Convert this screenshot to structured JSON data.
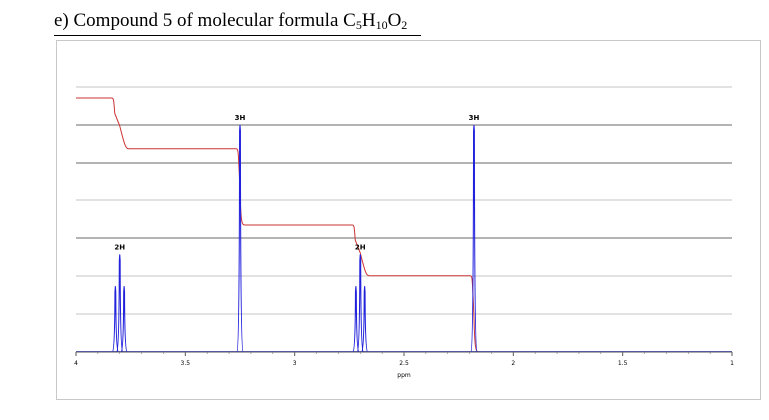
{
  "header": {
    "title_prefix": "e) Compound 5 of molecular formula C",
    "c_count": "5",
    "h_letter": "H",
    "h_count": "10",
    "o_letter": "O",
    "o_count": "2"
  },
  "chart_data": {
    "type": "line",
    "xlabel": "ppm",
    "xlim": [
      4,
      1
    ],
    "x_ticks": [
      4,
      3.5,
      3,
      2.5,
      2,
      1.5,
      1
    ],
    "x_tick_labels": [
      "4",
      "3.5",
      "3",
      "2.5",
      "2",
      "1.5",
      "1"
    ],
    "spectrum_color": "#2222dd",
    "integral_color": "#cc3333",
    "peaks": [
      {
        "ppm": 3.82,
        "height": 0.29
      },
      {
        "ppm": 3.8,
        "height": 0.43
      },
      {
        "ppm": 3.78,
        "height": 0.29
      },
      {
        "ppm": 3.25,
        "height": 1.0
      },
      {
        "ppm": 2.72,
        "height": 0.29
      },
      {
        "ppm": 2.7,
        "height": 0.43
      },
      {
        "ppm": 2.68,
        "height": 0.29
      },
      {
        "ppm": 2.18,
        "height": 1.0
      }
    ],
    "peak_labels": [
      {
        "ppm": 3.8,
        "text": "2H"
      },
      {
        "ppm": 3.25,
        "text": "3H"
      },
      {
        "ppm": 2.7,
        "text": "2H"
      },
      {
        "ppm": 2.18,
        "text": "3H"
      }
    ],
    "integral_steps": [
      {
        "ppm": 3.8,
        "drop": 2
      },
      {
        "ppm": 3.25,
        "drop": 3
      },
      {
        "ppm": 2.7,
        "drop": 2
      },
      {
        "ppm": 2.18,
        "drop": 3
      }
    ],
    "grid": true
  }
}
